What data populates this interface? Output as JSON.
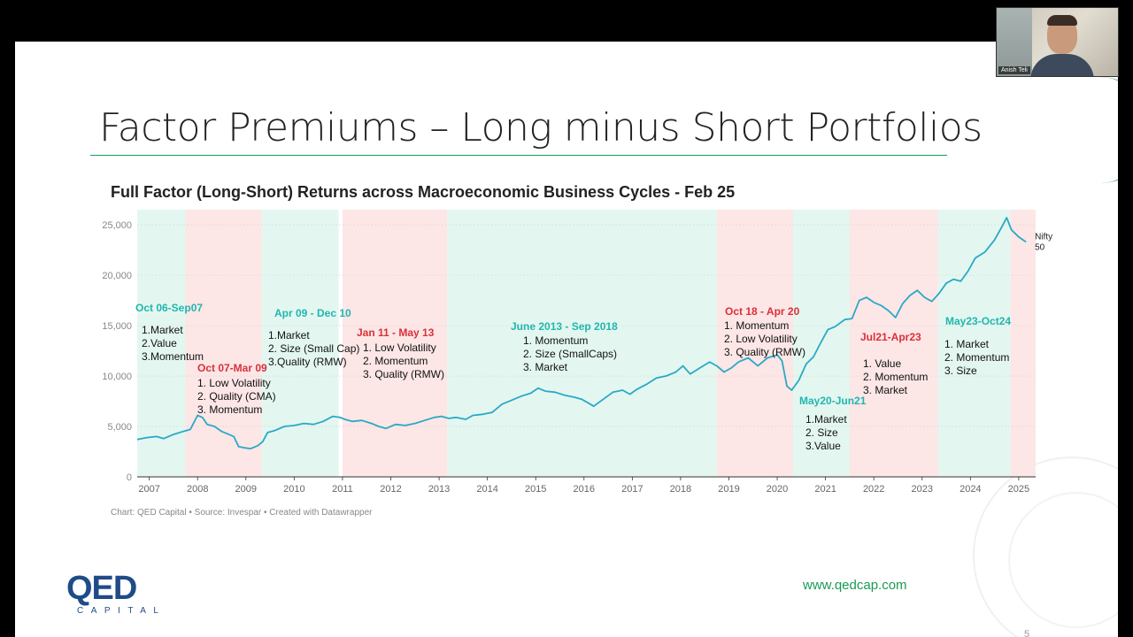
{
  "slide": {
    "title": "Factor Premiums – Long minus Short Portfolios",
    "chart_title": "Full Factor (Long-Short) Returns across Macroeconomic Business Cycles - Feb 25",
    "footer_note": "Chart: QED Capital • Source: Invespar • Created with Datawrapper",
    "logo_main": "QED",
    "logo_sub": "CAPITAL",
    "url": "www.qedcap.com",
    "page_number": "5",
    "colors": {
      "accent": "#1a9a54",
      "logo": "#1f4b88",
      "line": "#2aa9c5",
      "expansion": "#e3f7f0",
      "contraction": "#fde6e6",
      "expansion_label": "#21b6b0",
      "contraction_label": "#d9303a"
    }
  },
  "participant": {
    "name": "Anish Teli"
  },
  "chart_data": {
    "type": "line",
    "title": "Full Factor (Long-Short) Returns across Macroeconomic Business Cycles - Feb 25",
    "xlim": [
      2006.75,
      2025.35
    ],
    "ylim": [
      0,
      26500
    ],
    "x_ticks": [
      "2007",
      "2008",
      "2009",
      "2010",
      "2011",
      "2012",
      "2013",
      "2014",
      "2015",
      "2016",
      "2017",
      "2018",
      "2019",
      "2020",
      "2021",
      "2022",
      "2023",
      "2024",
      "2025"
    ],
    "y_ticks": [
      0,
      5000,
      10000,
      15000,
      20000,
      25000
    ],
    "y_tick_labels": [
      "0",
      "5,000",
      "10,000",
      "15,000",
      "20,000",
      "25,000"
    ],
    "grid": true,
    "series": [
      {
        "name": "Nifty 50",
        "label_line1": "Nifty",
        "label_line2": "50",
        "points": [
          [
            2006.75,
            3700
          ],
          [
            2006.95,
            3900
          ],
          [
            2007.15,
            4000
          ],
          [
            2007.3,
            3800
          ],
          [
            2007.5,
            4200
          ],
          [
            2007.7,
            4500
          ],
          [
            2007.85,
            4700
          ],
          [
            2008.0,
            6100
          ],
          [
            2008.1,
            5900
          ],
          [
            2008.2,
            5200
          ],
          [
            2008.35,
            5000
          ],
          [
            2008.5,
            4500
          ],
          [
            2008.65,
            4200
          ],
          [
            2008.75,
            4000
          ],
          [
            2008.85,
            3000
          ],
          [
            2008.95,
            2900
          ],
          [
            2009.1,
            2800
          ],
          [
            2009.25,
            3100
          ],
          [
            2009.35,
            3500
          ],
          [
            2009.45,
            4400
          ],
          [
            2009.6,
            4600
          ],
          [
            2009.8,
            5000
          ],
          [
            2010.0,
            5100
          ],
          [
            2010.2,
            5300
          ],
          [
            2010.4,
            5200
          ],
          [
            2010.6,
            5500
          ],
          [
            2010.8,
            6000
          ],
          [
            2010.95,
            5900
          ],
          [
            2011.05,
            5700
          ],
          [
            2011.2,
            5500
          ],
          [
            2011.4,
            5600
          ],
          [
            2011.6,
            5300
          ],
          [
            2011.75,
            5000
          ],
          [
            2011.9,
            4800
          ],
          [
            2012.1,
            5200
          ],
          [
            2012.3,
            5100
          ],
          [
            2012.5,
            5300
          ],
          [
            2012.7,
            5600
          ],
          [
            2012.9,
            5900
          ],
          [
            2013.05,
            6000
          ],
          [
            2013.2,
            5800
          ],
          [
            2013.35,
            5900
          ],
          [
            2013.55,
            5700
          ],
          [
            2013.7,
            6100
          ],
          [
            2013.9,
            6200
          ],
          [
            2014.1,
            6400
          ],
          [
            2014.3,
            7200
          ],
          [
            2014.5,
            7600
          ],
          [
            2014.7,
            8000
          ],
          [
            2014.9,
            8300
          ],
          [
            2015.05,
            8800
          ],
          [
            2015.2,
            8500
          ],
          [
            2015.4,
            8400
          ],
          [
            2015.6,
            8100
          ],
          [
            2015.8,
            7900
          ],
          [
            2015.95,
            7700
          ],
          [
            2016.1,
            7300
          ],
          [
            2016.2,
            7000
          ],
          [
            2016.4,
            7700
          ],
          [
            2016.6,
            8400
          ],
          [
            2016.8,
            8600
          ],
          [
            2016.95,
            8200
          ],
          [
            2017.1,
            8700
          ],
          [
            2017.3,
            9200
          ],
          [
            2017.5,
            9800
          ],
          [
            2017.7,
            10000
          ],
          [
            2017.9,
            10400
          ],
          [
            2018.05,
            11000
          ],
          [
            2018.2,
            10200
          ],
          [
            2018.4,
            10800
          ],
          [
            2018.6,
            11400
          ],
          [
            2018.75,
            11000
          ],
          [
            2018.9,
            10400
          ],
          [
            2019.05,
            10800
          ],
          [
            2019.2,
            11400
          ],
          [
            2019.4,
            11800
          ],
          [
            2019.6,
            11000
          ],
          [
            2019.8,
            11800
          ],
          [
            2020.0,
            12100
          ],
          [
            2020.1,
            11500
          ],
          [
            2020.2,
            9000
          ],
          [
            2020.3,
            8600
          ],
          [
            2020.45,
            9600
          ],
          [
            2020.6,
            11200
          ],
          [
            2020.75,
            11900
          ],
          [
            2020.9,
            13300
          ],
          [
            2021.05,
            14600
          ],
          [
            2021.2,
            14900
          ],
          [
            2021.4,
            15600
          ],
          [
            2021.55,
            15700
          ],
          [
            2021.7,
            17500
          ],
          [
            2021.85,
            17800
          ],
          [
            2022.0,
            17300
          ],
          [
            2022.15,
            17000
          ],
          [
            2022.3,
            16500
          ],
          [
            2022.45,
            15800
          ],
          [
            2022.6,
            17200
          ],
          [
            2022.75,
            18000
          ],
          [
            2022.9,
            18500
          ],
          [
            2023.05,
            17800
          ],
          [
            2023.2,
            17400
          ],
          [
            2023.35,
            18200
          ],
          [
            2023.5,
            19200
          ],
          [
            2023.65,
            19600
          ],
          [
            2023.8,
            19400
          ],
          [
            2023.95,
            20400
          ],
          [
            2024.1,
            21700
          ],
          [
            2024.3,
            22300
          ],
          [
            2024.5,
            23500
          ],
          [
            2024.65,
            24800
          ],
          [
            2024.75,
            25700
          ],
          [
            2024.85,
            24500
          ],
          [
            2025.0,
            23800
          ],
          [
            2025.15,
            23300
          ]
        ]
      }
    ],
    "regimes": [
      {
        "start": 2006.75,
        "end": 2007.75,
        "type": "expansion",
        "period": "Oct 06-Sep07",
        "factors": [
          "1.Market",
          "2.Value",
          "3.Momentum"
        ]
      },
      {
        "start": 2007.75,
        "end": 2009.33,
        "type": "contraction",
        "period": "Oct 07-Mar 09",
        "factors": [
          "1. Low Volatility",
          "2. Quality (CMA)",
          "3. Momentum"
        ]
      },
      {
        "start": 2009.33,
        "end": 2010.92,
        "type": "expansion",
        "period": "Apr 09 - Dec 10",
        "factors": [
          "1.Market",
          "2. Size (Small Cap)",
          "3.Quality (RMW)"
        ]
      },
      {
        "start": 2011.0,
        "end": 2013.17,
        "type": "contraction",
        "period": "Jan 11 - May 13",
        "factors": [
          "1. Low Volatility",
          "2. Momentum",
          "3. Quality (RMW)"
        ]
      },
      {
        "start": 2013.17,
        "end": 2018.75,
        "type": "expansion",
        "period": "June 2013 - Sep 2018",
        "factors": [
          "1. Momentum",
          "2. Size (SmallCaps)",
          "3. Market"
        ]
      },
      {
        "start": 2018.75,
        "end": 2020.33,
        "type": "contraction",
        "period": "Oct 18 - Apr 20",
        "factors": [
          "1. Momentum",
          "2. Low Volatility",
          "3. Quality (RMW)"
        ]
      },
      {
        "start": 2020.33,
        "end": 2021.5,
        "type": "expansion",
        "period": "May20-Jun21",
        "factors": [
          "1.Market",
          "2. Size",
          "3.Value"
        ]
      },
      {
        "start": 2021.5,
        "end": 2023.33,
        "type": "contraction",
        "period": "Jul21-Apr23",
        "factors": [
          "1. Value",
          "2. Momentum",
          "3. Market"
        ]
      },
      {
        "start": 2023.33,
        "end": 2024.83,
        "type": "expansion",
        "period": "May23-Oct24",
        "factors": [
          "1. Market",
          "2. Momentum",
          "3. Size"
        ]
      },
      {
        "start": 2024.83,
        "end": 2025.35,
        "type": "contraction",
        "period": "",
        "factors": []
      }
    ]
  }
}
